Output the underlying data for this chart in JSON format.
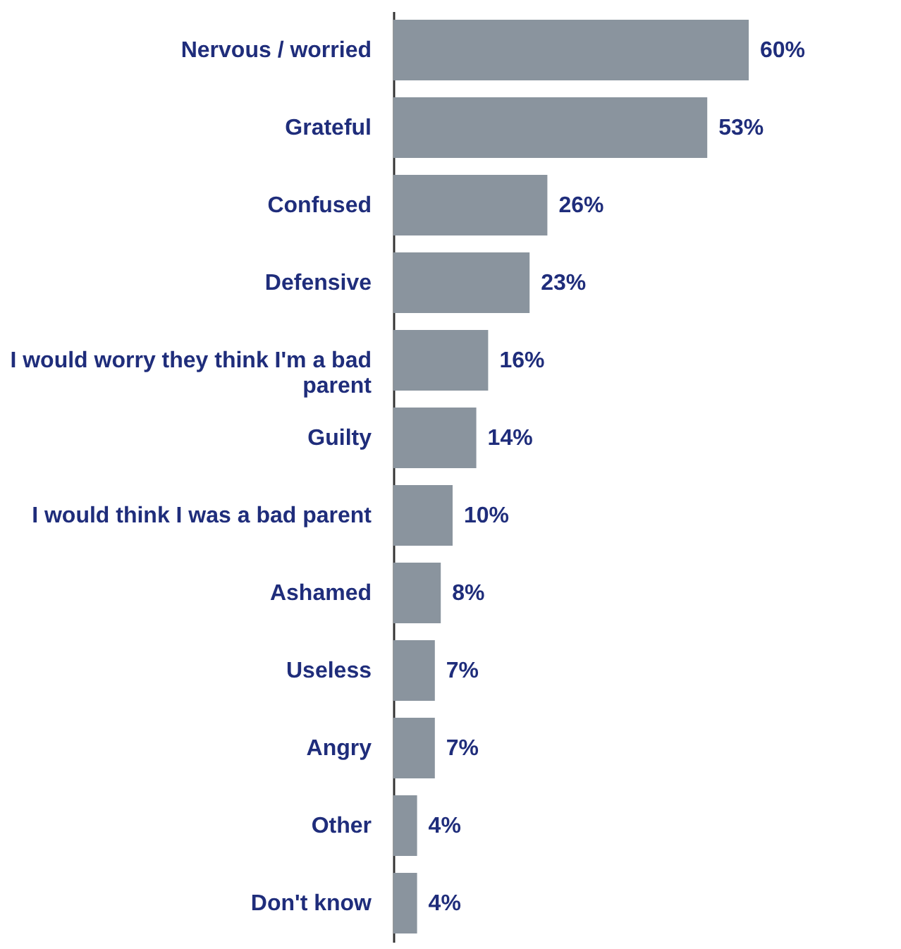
{
  "chart_data": {
    "type": "bar",
    "orientation": "horizontal",
    "categories": [
      "Nervous / worried",
      "Grateful",
      "Confused",
      "Defensive",
      "I would worry they think I'm a bad parent",
      "Guilty",
      "I would think I was a bad parent",
      "Ashamed",
      "Useless",
      "Angry",
      "Other",
      "Don't know"
    ],
    "values": [
      60,
      53,
      26,
      23,
      16,
      14,
      10,
      8,
      7,
      7,
      4,
      4
    ],
    "value_labels": [
      "60%",
      "53%",
      "26%",
      "23%",
      "16%",
      "14%",
      "10%",
      "8%",
      "7%",
      "7%",
      "4%",
      "4%"
    ],
    "color": "#8a949e"
  }
}
